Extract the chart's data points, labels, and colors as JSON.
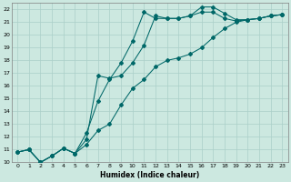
{
  "xlabel": "Humidex (Indice chaleur)",
  "bg_color": "#cce8e0",
  "grid_color": "#aacfc8",
  "line_color": "#006868",
  "xlim": [
    -0.5,
    23.5
  ],
  "ylim": [
    10,
    22.5
  ],
  "xticks": [
    0,
    1,
    2,
    3,
    4,
    5,
    6,
    7,
    8,
    9,
    10,
    11,
    12,
    13,
    14,
    15,
    16,
    17,
    18,
    19,
    20,
    21,
    22,
    23
  ],
  "yticks": [
    10,
    11,
    12,
    13,
    14,
    15,
    16,
    17,
    18,
    19,
    20,
    21,
    22
  ],
  "line1_x": [
    0,
    1,
    2,
    3,
    4,
    5,
    6,
    7,
    8,
    9,
    10,
    11,
    12,
    13,
    14,
    15,
    16,
    17,
    18,
    19,
    20,
    21,
    22,
    23
  ],
  "line1_y": [
    10.8,
    11.0,
    10.0,
    10.5,
    11.1,
    10.7,
    11.8,
    16.8,
    16.6,
    16.8,
    17.8,
    19.2,
    21.5,
    21.3,
    21.3,
    21.5,
    22.2,
    22.2,
    21.7,
    21.2,
    21.2,
    21.3,
    21.5,
    21.6
  ],
  "line2_x": [
    0,
    1,
    2,
    3,
    4,
    5,
    6,
    7,
    8,
    9,
    10,
    11,
    12,
    13,
    14,
    15,
    16,
    17,
    18,
    19,
    20,
    21,
    22,
    23
  ],
  "line2_y": [
    10.8,
    11.0,
    10.0,
    10.5,
    11.1,
    10.7,
    12.3,
    14.8,
    16.5,
    17.8,
    19.5,
    21.8,
    21.3,
    21.3,
    21.3,
    21.5,
    21.8,
    21.8,
    21.3,
    21.1,
    21.2,
    21.3,
    21.5,
    21.6
  ],
  "line3_x": [
    0,
    1,
    2,
    3,
    4,
    5,
    6,
    7,
    8,
    9,
    10,
    11,
    12,
    13,
    14,
    15,
    16,
    17,
    18,
    19,
    20,
    21,
    22,
    23
  ],
  "line3_y": [
    10.8,
    11.0,
    10.0,
    10.5,
    11.1,
    10.7,
    11.4,
    12.5,
    13.0,
    14.5,
    15.8,
    16.5,
    17.5,
    18.0,
    18.2,
    18.5,
    19.0,
    19.8,
    20.5,
    21.0,
    21.2,
    21.3,
    21.5,
    21.6
  ]
}
